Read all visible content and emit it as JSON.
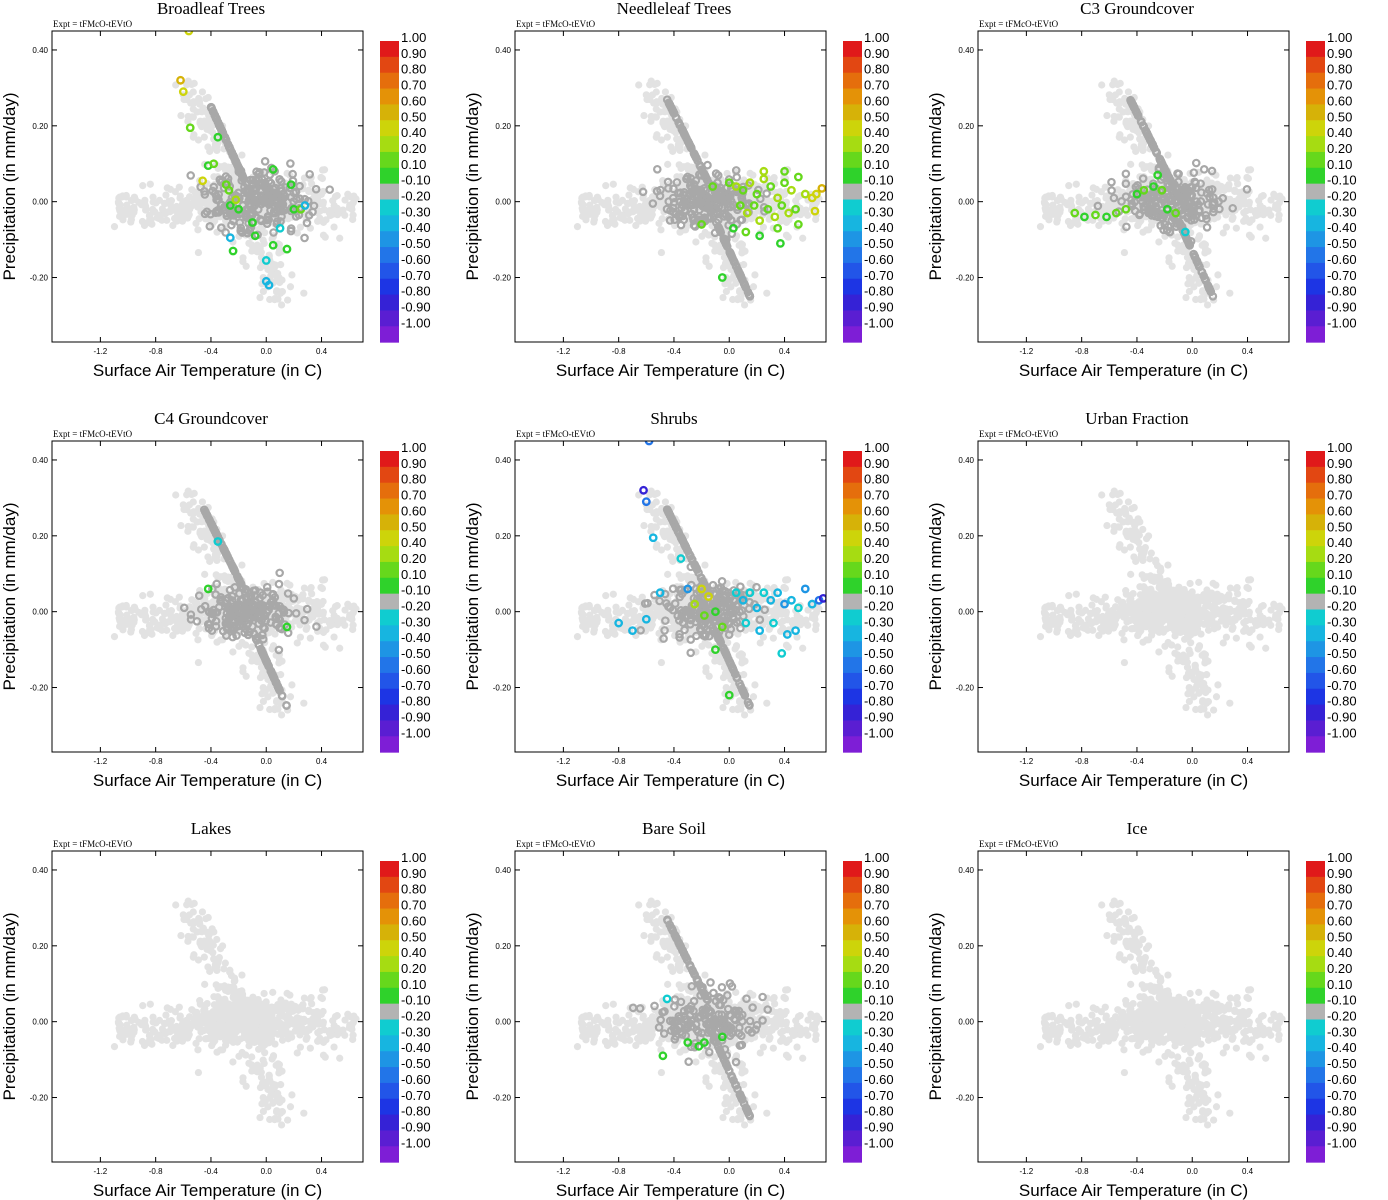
{
  "figure": {
    "expt_label": "Expt = tFMcO-tEVtO",
    "xlabel": "Surface Air Temperature (in C)",
    "ylabel": "Precipitation (in mm/day)",
    "xticks": [
      "-1.2",
      "-0.8",
      "-0.4",
      "0.0",
      "0.4"
    ],
    "yticks": [
      "0.40",
      "0.20",
      "0.00",
      "-0.20"
    ],
    "colorbar": {
      "labels": [
        "1.00",
        "0.90",
        "0.80",
        "0.70",
        "0.60",
        "0.50",
        "0.40",
        "0.20",
        "0.10",
        "-0.10",
        "-0.20",
        "-0.30",
        "-0.40",
        "-0.50",
        "-0.60",
        "-0.70",
        "-0.80",
        "-0.90",
        "-1.00"
      ],
      "colors": [
        "#e0191a",
        "#e24712",
        "#e56e0c",
        "#e49207",
        "#d6b208",
        "#cdd40a",
        "#a6dc12",
        "#66d81c",
        "#2fd22b",
        "#b3b3b3",
        "#10ccd0",
        "#17b5e0",
        "#1e95e4",
        "#2275e8",
        "#2255e8",
        "#1d35e4",
        "#3522d6",
        "#5a1ed2",
        "#7e1ed6"
      ]
    }
  },
  "chart_data": [
    {
      "type": "scatter",
      "title": "Broadleaf Trees",
      "xlabel": "Surface Air Temperature (in C)",
      "ylabel": "Precipitation (in mm/day)",
      "xlim": [
        -1.55,
        0.7
      ],
      "ylim": [
        -0.37,
        0.45
      ],
      "highlighted_points": [
        {
          "x": -0.62,
          "y": 0.32,
          "value": 0.6
        },
        {
          "x": -0.6,
          "y": 0.29,
          "value": 0.5
        },
        {
          "x": -0.56,
          "y": 0.45,
          "value": 0.5
        },
        {
          "x": -0.55,
          "y": 0.195,
          "value": 0.2
        },
        {
          "x": -0.46,
          "y": 0.055,
          "value": 0.5
        },
        {
          "x": -0.42,
          "y": 0.095,
          "value": 0.1
        },
        {
          "x": -0.38,
          "y": 0.1,
          "value": 0.2
        },
        {
          "x": -0.35,
          "y": 0.17,
          "value": 0.1
        },
        {
          "x": -0.29,
          "y": 0.045,
          "value": 0.2
        },
        {
          "x": -0.27,
          "y": 0.03,
          "value": 0.2
        },
        {
          "x": -0.26,
          "y": -0.01,
          "value": 0.1
        },
        {
          "x": -0.22,
          "y": 0.005,
          "value": 0.4
        },
        {
          "x": -0.2,
          "y": -0.02,
          "value": 0.1
        },
        {
          "x": -0.26,
          "y": -0.095,
          "value": -0.3
        },
        {
          "x": -0.24,
          "y": -0.13,
          "value": 0.1
        },
        {
          "x": -0.1,
          "y": -0.055,
          "value": 0.1
        },
        {
          "x": -0.08,
          "y": -0.09,
          "value": 0.1
        },
        {
          "x": 0.05,
          "y": 0.085,
          "value": 0.1
        },
        {
          "x": 0.05,
          "y": -0.115,
          "value": 0.1
        },
        {
          "x": 0.1,
          "y": -0.07,
          "value": -0.2
        },
        {
          "x": 0.15,
          "y": -0.125,
          "value": 0.1
        },
        {
          "x": 0.18,
          "y": 0.045,
          "value": 0.1
        },
        {
          "x": 0.2,
          "y": -0.02,
          "value": 0.1
        },
        {
          "x": 0.25,
          "y": -0.02,
          "value": 0.2
        },
        {
          "x": 0.28,
          "y": -0.01,
          "value": -0.3
        },
        {
          "x": 0.0,
          "y": -0.21,
          "value": -0.3
        },
        {
          "x": 0.02,
          "y": -0.22,
          "value": -0.3
        },
        {
          "x": 0.0,
          "y": -0.155,
          "value": -0.2
        }
      ]
    },
    {
      "type": "scatter",
      "title": "Needleleaf Trees",
      "xlabel": "Surface Air Temperature (in C)",
      "ylabel": "Precipitation (in mm/day)",
      "xlim": [
        -1.55,
        0.7
      ],
      "ylim": [
        -0.37,
        0.45
      ],
      "highlighted_points": [
        {
          "x": 0.0,
          "y": 0.05,
          "value": 0.2
        },
        {
          "x": 0.05,
          "y": 0.04,
          "value": 0.4
        },
        {
          "x": 0.1,
          "y": 0.03,
          "value": 0.2
        },
        {
          "x": 0.15,
          "y": 0.05,
          "value": 0.4
        },
        {
          "x": 0.2,
          "y": 0.02,
          "value": 0.2
        },
        {
          "x": 0.25,
          "y": 0.06,
          "value": 0.4
        },
        {
          "x": 0.3,
          "y": 0.04,
          "value": 0.2
        },
        {
          "x": 0.35,
          "y": 0.01,
          "value": 0.4
        },
        {
          "x": 0.4,
          "y": 0.05,
          "value": 0.2
        },
        {
          "x": 0.45,
          "y": 0.03,
          "value": 0.4
        },
        {
          "x": 0.5,
          "y": 0.065,
          "value": 0.2
        },
        {
          "x": 0.55,
          "y": 0.02,
          "value": 0.4
        },
        {
          "x": 0.6,
          "y": 0.01,
          "value": 0.5
        },
        {
          "x": 0.63,
          "y": 0.02,
          "value": 0.5
        },
        {
          "x": 0.67,
          "y": 0.035,
          "value": 0.6
        },
        {
          "x": 0.62,
          "y": -0.025,
          "value": 0.5
        },
        {
          "x": 0.08,
          "y": -0.01,
          "value": 0.2
        },
        {
          "x": 0.13,
          "y": -0.03,
          "value": 0.4
        },
        {
          "x": 0.18,
          "y": -0.01,
          "value": 0.2
        },
        {
          "x": 0.22,
          "y": -0.05,
          "value": 0.4
        },
        {
          "x": 0.28,
          "y": -0.02,
          "value": 0.2
        },
        {
          "x": 0.33,
          "y": -0.04,
          "value": 0.4
        },
        {
          "x": 0.38,
          "y": -0.01,
          "value": 0.2
        },
        {
          "x": 0.43,
          "y": -0.03,
          "value": 0.4
        },
        {
          "x": 0.48,
          "y": -0.02,
          "value": 0.2
        },
        {
          "x": 0.03,
          "y": -0.07,
          "value": 0.1
        },
        {
          "x": 0.12,
          "y": -0.08,
          "value": 0.2
        },
        {
          "x": 0.22,
          "y": -0.09,
          "value": 0.1
        },
        {
          "x": 0.35,
          "y": -0.07,
          "value": 0.2
        },
        {
          "x": 0.37,
          "y": -0.11,
          "value": 0.1
        },
        {
          "x": 0.5,
          "y": -0.06,
          "value": 0.2
        },
        {
          "x": -0.2,
          "y": -0.06,
          "value": 0.2
        },
        {
          "x": -0.12,
          "y": 0.04,
          "value": 0.2
        },
        {
          "x": -0.05,
          "y": -0.2,
          "value": 0.1
        },
        {
          "x": 0.25,
          "y": 0.08,
          "value": 0.4
        },
        {
          "x": 0.4,
          "y": 0.08,
          "value": 0.2
        }
      ]
    },
    {
      "type": "scatter",
      "title": "C3 Groundcover",
      "xlabel": "Surface Air Temperature (in C)",
      "ylabel": "Precipitation (in mm/day)",
      "xlim": [
        -1.55,
        0.7
      ],
      "ylim": [
        -0.37,
        0.45
      ],
      "highlighted_points": [
        {
          "x": -0.85,
          "y": -0.03,
          "value": 0.2
        },
        {
          "x": -0.78,
          "y": -0.04,
          "value": 0.1
        },
        {
          "x": -0.7,
          "y": -0.035,
          "value": 0.2
        },
        {
          "x": -0.62,
          "y": -0.04,
          "value": 0.1
        },
        {
          "x": -0.55,
          "y": -0.03,
          "value": 0.2
        },
        {
          "x": -0.48,
          "y": -0.02,
          "value": 0.2
        },
        {
          "x": -0.4,
          "y": 0.02,
          "value": 0.1
        },
        {
          "x": -0.35,
          "y": 0.03,
          "value": 0.2
        },
        {
          "x": -0.28,
          "y": 0.04,
          "value": 0.1
        },
        {
          "x": -0.25,
          "y": 0.07,
          "value": 0.1
        },
        {
          "x": -0.22,
          "y": 0.03,
          "value": 0.2
        },
        {
          "x": -0.18,
          "y": -0.02,
          "value": 0.1
        },
        {
          "x": -0.12,
          "y": -0.03,
          "value": 0.2
        },
        {
          "x": -0.05,
          "y": -0.08,
          "value": -0.2
        }
      ]
    },
    {
      "type": "scatter",
      "title": "C4 Groundcover",
      "xlabel": "Surface Air Temperature (in C)",
      "ylabel": "Precipitation (in mm/day)",
      "xlim": [
        -1.55,
        0.7
      ],
      "ylim": [
        -0.37,
        0.45
      ],
      "highlighted_points": [
        {
          "x": -0.35,
          "y": 0.185,
          "value": -0.2
        },
        {
          "x": -0.42,
          "y": 0.06,
          "value": 0.1
        },
        {
          "x": 0.15,
          "y": -0.04,
          "value": 0.1
        }
      ]
    },
    {
      "type": "scatter",
      "title": "Shrubs",
      "xlabel": "Surface Air Temperature (in C)",
      "ylabel": "Precipitation (in mm/day)",
      "xlim": [
        -1.55,
        0.7
      ],
      "ylim": [
        -0.37,
        0.45
      ],
      "highlighted_points": [
        {
          "x": -0.62,
          "y": 0.32,
          "value": -0.8
        },
        {
          "x": -0.6,
          "y": 0.29,
          "value": -0.5
        },
        {
          "x": -0.58,
          "y": 0.45,
          "value": -0.5
        },
        {
          "x": -0.55,
          "y": 0.195,
          "value": -0.3
        },
        {
          "x": -0.5,
          "y": 0.05,
          "value": -0.3
        },
        {
          "x": -0.35,
          "y": 0.14,
          "value": -0.2
        },
        {
          "x": -0.3,
          "y": 0.06,
          "value": -0.4
        },
        {
          "x": -0.2,
          "y": 0.06,
          "value": 0.5
        },
        {
          "x": -0.15,
          "y": 0.04,
          "value": 0.5
        },
        {
          "x": -0.25,
          "y": 0.02,
          "value": 0.4
        },
        {
          "x": -0.18,
          "y": -0.01,
          "value": 0.2
        },
        {
          "x": -0.1,
          "y": 0.0,
          "value": 0.1
        },
        {
          "x": -0.05,
          "y": -0.04,
          "value": 0.2
        },
        {
          "x": -0.1,
          "y": -0.1,
          "value": 0.1
        },
        {
          "x": 0.0,
          "y": -0.22,
          "value": 0.1
        },
        {
          "x": -0.8,
          "y": -0.03,
          "value": -0.3
        },
        {
          "x": -0.7,
          "y": -0.05,
          "value": -0.3
        },
        {
          "x": -0.6,
          "y": -0.02,
          "value": -0.3
        },
        {
          "x": 0.05,
          "y": 0.05,
          "value": -0.2
        },
        {
          "x": 0.1,
          "y": 0.03,
          "value": -0.3
        },
        {
          "x": 0.15,
          "y": 0.05,
          "value": -0.2
        },
        {
          "x": 0.2,
          "y": 0.01,
          "value": -0.3
        },
        {
          "x": 0.25,
          "y": 0.05,
          "value": -0.2
        },
        {
          "x": 0.3,
          "y": 0.03,
          "value": -0.3
        },
        {
          "x": 0.35,
          "y": 0.05,
          "value": -0.3
        },
        {
          "x": 0.4,
          "y": 0.02,
          "value": -0.4
        },
        {
          "x": 0.45,
          "y": 0.03,
          "value": -0.3
        },
        {
          "x": 0.5,
          "y": 0.01,
          "value": -0.2
        },
        {
          "x": 0.55,
          "y": 0.06,
          "value": -0.4
        },
        {
          "x": 0.6,
          "y": 0.02,
          "value": -0.3
        },
        {
          "x": 0.65,
          "y": 0.03,
          "value": -0.5
        },
        {
          "x": 0.68,
          "y": 0.035,
          "value": -0.8
        },
        {
          "x": 0.12,
          "y": -0.03,
          "value": -0.2
        },
        {
          "x": 0.22,
          "y": -0.05,
          "value": -0.3
        },
        {
          "x": 0.32,
          "y": -0.03,
          "value": -0.2
        },
        {
          "x": 0.42,
          "y": -0.06,
          "value": -0.3
        },
        {
          "x": 0.38,
          "y": -0.11,
          "value": -0.2
        },
        {
          "x": 0.48,
          "y": -0.05,
          "value": -0.3
        }
      ]
    },
    {
      "type": "scatter",
      "title": "Urban Fraction",
      "xlabel": "Surface Air Temperature (in C)",
      "ylabel": "Precipitation (in mm/day)",
      "xlim": [
        -1.55,
        0.7
      ],
      "ylim": [
        -0.37,
        0.45
      ],
      "highlighted_points": []
    },
    {
      "type": "scatter",
      "title": "Lakes",
      "xlabel": "Surface Air Temperature (in C)",
      "ylabel": "Precipitation (in mm/day)",
      "xlim": [
        -1.55,
        0.7
      ],
      "ylim": [
        -0.37,
        0.45
      ],
      "highlighted_points": []
    },
    {
      "type": "scatter",
      "title": "Bare Soil",
      "xlabel": "Surface Air Temperature (in C)",
      "ylabel": "Precipitation (in mm/day)",
      "xlim": [
        -1.55,
        0.7
      ],
      "ylim": [
        -0.37,
        0.45
      ],
      "highlighted_points": [
        {
          "x": -0.45,
          "y": 0.06,
          "value": -0.2
        },
        {
          "x": -0.48,
          "y": -0.09,
          "value": 0.1
        },
        {
          "x": -0.3,
          "y": -0.055,
          "value": 0.1
        },
        {
          "x": -0.22,
          "y": -0.065,
          "value": 0.1
        },
        {
          "x": -0.18,
          "y": -0.055,
          "value": 0.1
        },
        {
          "x": -0.05,
          "y": -0.04,
          "value": 0.1
        }
      ]
    },
    {
      "type": "scatter",
      "title": "Ice",
      "xlabel": "Surface Air Temperature (in C)",
      "ylabel": "Precipitation (in mm/day)",
      "xlim": [
        -1.55,
        0.7
      ],
      "ylim": [
        -0.37,
        0.45
      ],
      "highlighted_points": []
    }
  ]
}
